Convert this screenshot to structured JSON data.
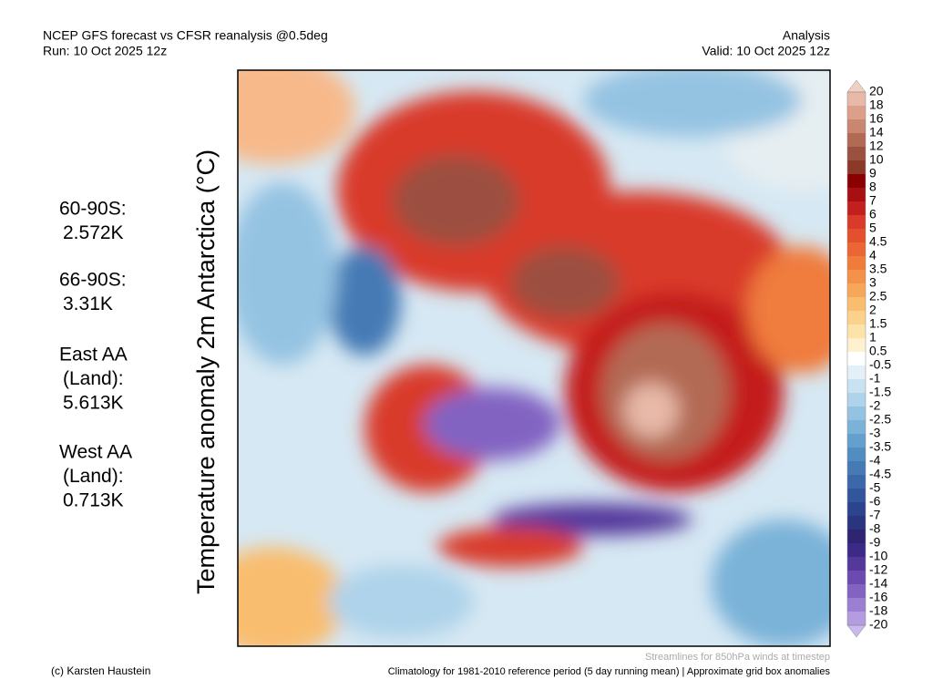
{
  "header": {
    "title_left": "NCEP GFS forecast vs CFSR reanalysis @0.5deg",
    "run": "Run: 10 Oct 2025 12z",
    "title_right": "Analysis",
    "valid": "Valid: 10 Oct 2025 12z"
  },
  "axis_label": "Temperature anomaly 2m Antarctica (°C)",
  "stats": [
    {
      "lines": [
        "60-90S:",
        "2.572K"
      ]
    },
    {
      "lines": [
        "66-90S:",
        "3.31K"
      ]
    },
    {
      "lines": [
        "East AA",
        "(Land):",
        "5.613K"
      ]
    },
    {
      "lines": [
        "West AA",
        "(Land):",
        "0.713K"
      ]
    }
  ],
  "colorbar": {
    "labels": [
      "20",
      "18",
      "16",
      "14",
      "12",
      "10",
      "9",
      "8",
      "7",
      "6",
      "5",
      "4.5",
      "4",
      "3.5",
      "3",
      "2.5",
      "2",
      "1.5",
      "1",
      "0.5",
      "-0.5",
      "-1",
      "-1.5",
      "-2",
      "-2.5",
      "-3",
      "-3.5",
      "-4",
      "-4.5",
      "-5",
      "-6",
      "-7",
      "-8",
      "-9",
      "-10",
      "-12",
      "-14",
      "-16",
      "-18",
      "-20"
    ],
    "colors": [
      "#f2cfc2",
      "#e8b9a8",
      "#dca08a",
      "#c98670",
      "#b36a55",
      "#9c5040",
      "#8b3a2a",
      "#8b0000",
      "#a80f12",
      "#c41f1f",
      "#d93a2a",
      "#e3502d",
      "#ec6534",
      "#f07c3c",
      "#f4914a",
      "#f7a75a",
      "#f9bd70",
      "#fbd18c",
      "#fde2aa",
      "#fff1cf",
      "#ffffff",
      "#e3f0f8",
      "#c9e2f2",
      "#aed3ea",
      "#94c3e2",
      "#7ab2d8",
      "#63a0cd",
      "#528dc1",
      "#457ab5",
      "#3a68a8",
      "#31569b",
      "#2b448d",
      "#2a347f",
      "#2e2472",
      "#3d2a86",
      "#54399b",
      "#6b4bb0",
      "#8263c2",
      "#9a7fd2",
      "#b39ce0",
      "#c9b9ee"
    ]
  },
  "footer": {
    "credit": "(c) Karsten Haustein",
    "streamlines": "Streamlines for 850hPa winds at timestep",
    "climatology": "Climatology for 1981-2010 reference period (5 day running mean) | Approximate grid box anomalies"
  }
}
